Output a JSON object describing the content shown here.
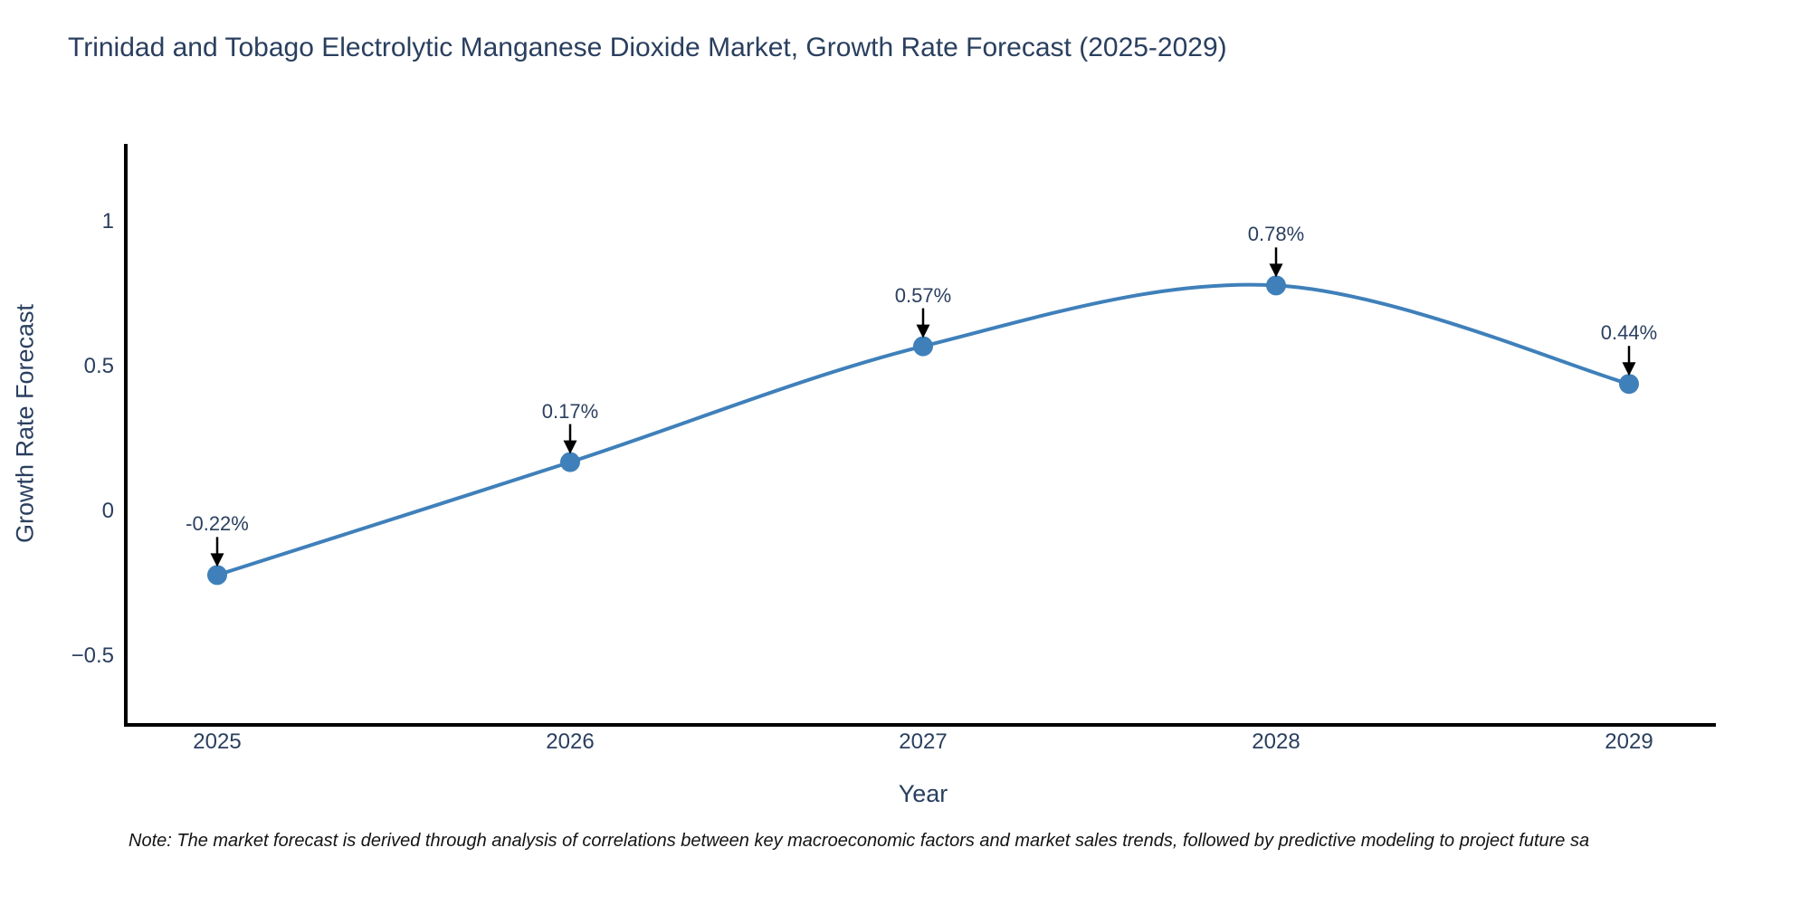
{
  "chart_data": {
    "type": "line",
    "title": "Trinidad and Tobago Electrolytic Manganese Dioxide Market, Growth Rate Forecast (2025-2029)",
    "xlabel": "Year",
    "ylabel": "Growth Rate Forecast",
    "x": [
      2025,
      2026,
      2027,
      2028,
      2029
    ],
    "categories": [
      "2025",
      "2026",
      "2027",
      "2028",
      "2029"
    ],
    "series": [
      {
        "name": "Growth Rate Forecast",
        "values": [
          -0.22,
          0.17,
          0.57,
          0.78,
          0.44
        ]
      }
    ],
    "point_labels": [
      "-0.22%",
      "0.17%",
      "0.57%",
      "0.78%",
      "0.44%"
    ],
    "y_ticks": [
      1,
      0.5,
      0,
      -0.5
    ],
    "y_tick_labels": [
      "1",
      "0.5",
      "0",
      "−0.5"
    ],
    "ylim": [
      -0.74,
      1.27
    ],
    "grid": false,
    "legend": "none",
    "line_shape": "spline",
    "line_color": "#3f80ba",
    "marker_color": "#3f80ba",
    "axis_line_color": "#000000",
    "arrow_color": "#000000",
    "text_color": "#2a3f5f"
  },
  "note": "Note: The market forecast is derived through analysis of correlations between key macroeconomic factors and market sales trends, followed by predictive modeling to project future sa"
}
